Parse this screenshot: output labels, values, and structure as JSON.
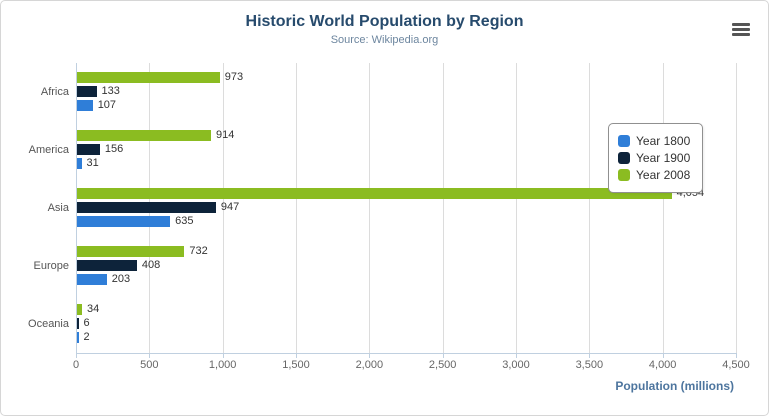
{
  "header": {
    "title": "Historic World Population by Region",
    "subtitle": "Source: Wikipedia.org"
  },
  "export_menu": {
    "icon": "hamburger-icon"
  },
  "chart_data": {
    "type": "bar",
    "orientation": "horizontal",
    "title": "Historic World Population by Region",
    "subtitle": "Source: Wikipedia.org",
    "categories": [
      "Africa",
      "America",
      "Asia",
      "Europe",
      "Oceania"
    ],
    "series": [
      {
        "name": "Year 1800",
        "color": "#2f7ed8",
        "values": [
          107,
          31,
          635,
          203,
          2
        ]
      },
      {
        "name": "Year 1900",
        "color": "#0d233a",
        "values": [
          133,
          156,
          947,
          408,
          6
        ]
      },
      {
        "name": "Year 2008",
        "color": "#8bbc21",
        "values": [
          973,
          914,
          4054,
          732,
          34
        ]
      }
    ],
    "display_order_top_to_bottom": [
      "Year 2008",
      "Year 1900",
      "Year 1800"
    ],
    "xlabel": "Population (millions)",
    "ylabel": "",
    "xlim": [
      0,
      4500
    ],
    "x_ticks": [
      0,
      500,
      1000,
      1500,
      2000,
      2500,
      3000,
      3500,
      4000,
      4500
    ],
    "x_tick_labels": [
      "0",
      "500",
      "1,000",
      "1,500",
      "2,000",
      "2,500",
      "3,000",
      "3,500",
      "4,000",
      "4,500"
    ],
    "data_labels": true,
    "grid": true,
    "legend_position": "right"
  }
}
